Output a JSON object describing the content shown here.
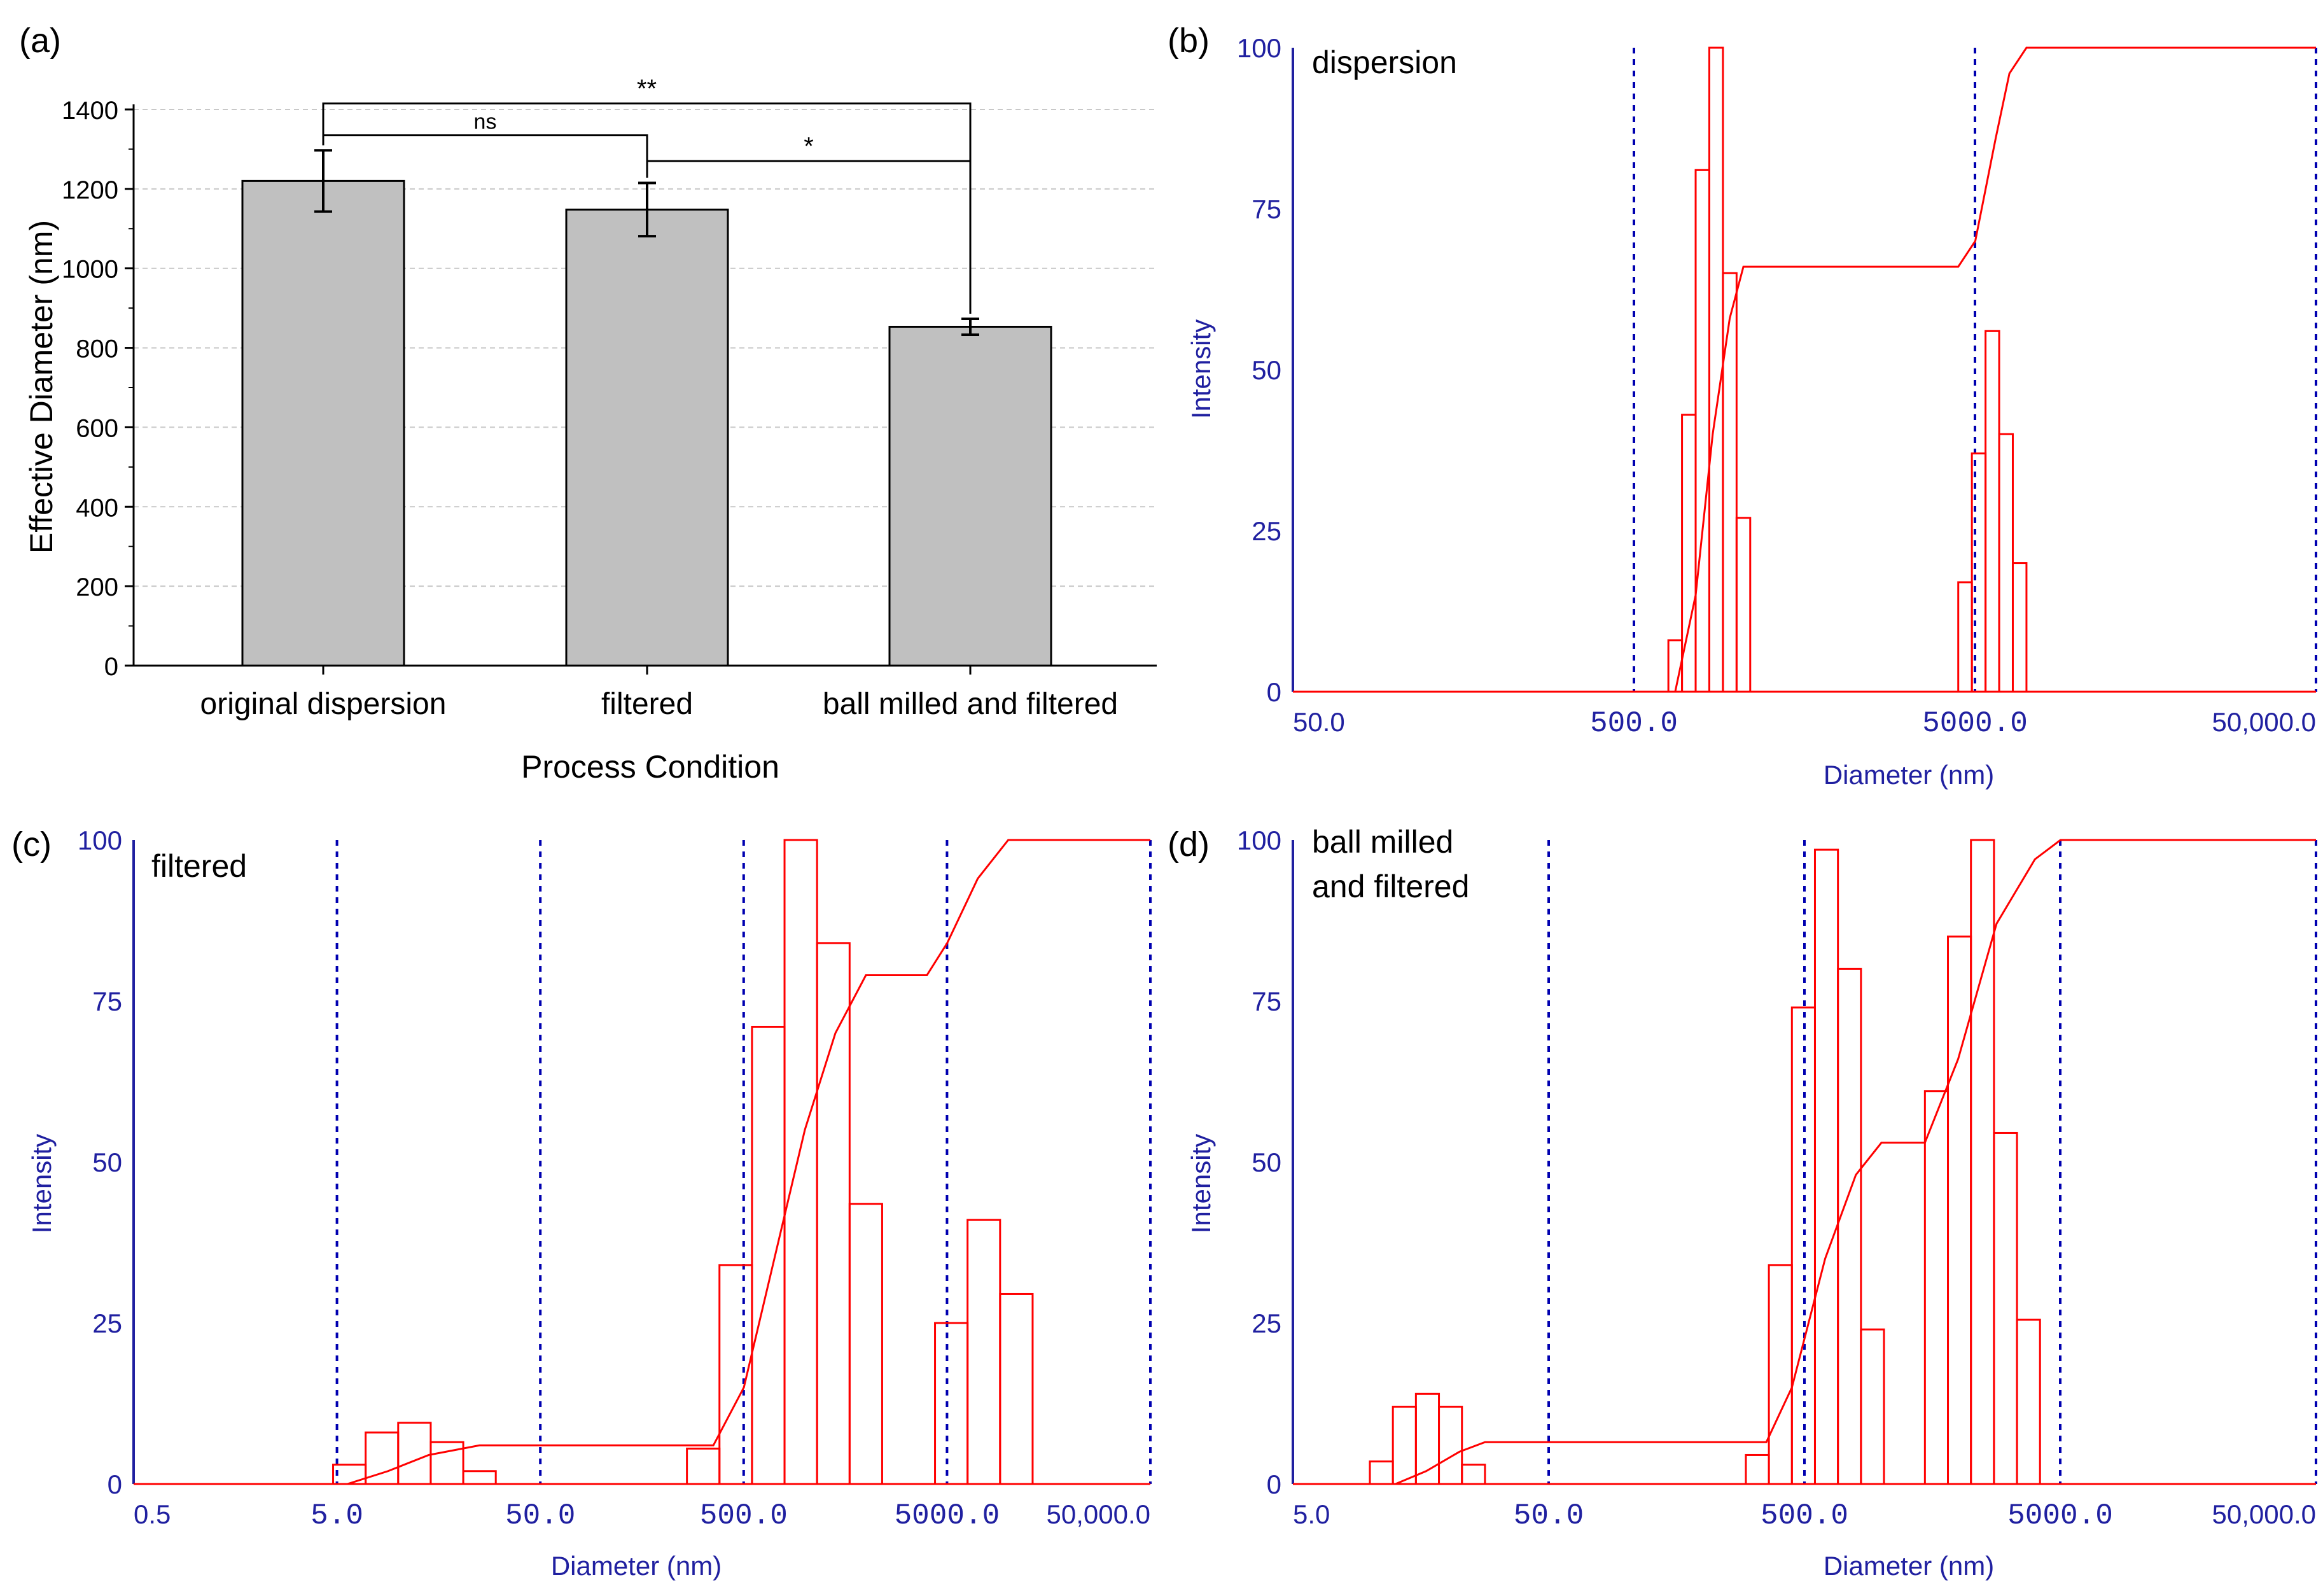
{
  "colors": {
    "bar_fill": "#c0c0c0",
    "bar_stroke": "#000000",
    "grid": "#c8c8c8",
    "dist": "#ff0000",
    "axis_blue": "#2020a0",
    "dotted": "#0000b0"
  },
  "panel_a": {
    "label": "(a)",
    "chart_data": {
      "type": "bar",
      "categories": [
        "original dispersion",
        "filtered",
        "ball milled and filtered"
      ],
      "values": [
        1220,
        1148,
        853
      ],
      "errors": [
        77,
        67,
        20
      ],
      "ylim": [
        0,
        1400
      ],
      "yticks": [
        "0",
        "200",
        "400",
        "600",
        "800",
        "1000",
        "1200",
        "1400"
      ],
      "xlabel": "Process Condition",
      "ylabel": "Effective Diameter (nm)",
      "grid": true,
      "significance": [
        {
          "from": 0,
          "to": 1,
          "level": 1335,
          "label": "ns"
        },
        {
          "from": 0,
          "to": 2,
          "level": 1415,
          "label": "**"
        },
        {
          "from": 1,
          "to": 2,
          "level": 1270,
          "label": "*"
        }
      ]
    }
  },
  "panel_b": {
    "label": "(b)",
    "title": "dispersion",
    "chart_data": {
      "type": "bar",
      "ylabel": "Intensity",
      "xlabel": "Diameter (nm)",
      "ylim": [
        0,
        100
      ],
      "yticks": [
        "0",
        "25",
        "50",
        "75",
        "100"
      ],
      "xlim_log10": [
        1.699,
        4.699
      ],
      "xticks": [
        {
          "log": 1.699,
          "label": "50.0",
          "mono": false
        },
        {
          "log": 2.699,
          "label": "500.0",
          "mono": true
        },
        {
          "log": 3.699,
          "label": "5000.0",
          "mono": true
        },
        {
          "log": 4.699,
          "label": "50,000.0",
          "mono": false
        }
      ],
      "decade_lines_log10": [
        2.699,
        3.699,
        4.699
      ],
      "histogram": [
        {
          "x0": 2.8,
          "x1": 2.84,
          "value": 8
        },
        {
          "x0": 2.84,
          "x1": 2.88,
          "value": 43
        },
        {
          "x0": 2.88,
          "x1": 2.92,
          "value": 81
        },
        {
          "x0": 2.92,
          "x1": 2.96,
          "value": 100
        },
        {
          "x0": 2.96,
          "x1": 3.0,
          "value": 65
        },
        {
          "x0": 3.0,
          "x1": 3.04,
          "value": 27
        },
        {
          "x0": 3.65,
          "x1": 3.69,
          "value": 17
        },
        {
          "x0": 3.69,
          "x1": 3.73,
          "value": 37
        },
        {
          "x0": 3.73,
          "x1": 3.77,
          "value": 56
        },
        {
          "x0": 3.77,
          "x1": 3.81,
          "value": 40
        },
        {
          "x0": 3.81,
          "x1": 3.85,
          "value": 20
        }
      ],
      "cumulative": [
        [
          1.699,
          0
        ],
        [
          2.82,
          0
        ],
        [
          2.88,
          15
        ],
        [
          2.93,
          40
        ],
        [
          2.98,
          58
        ],
        [
          3.02,
          66
        ],
        [
          3.65,
          66
        ],
        [
          3.7,
          70
        ],
        [
          3.76,
          86
        ],
        [
          3.8,
          96
        ],
        [
          3.85,
          100
        ],
        [
          4.699,
          100
        ]
      ]
    }
  },
  "panel_c": {
    "label": "(c)",
    "title": "filtered",
    "chart_data": {
      "type": "bar",
      "ylabel": "Intensity",
      "xlabel": "Diameter (nm)",
      "ylim": [
        0,
        100
      ],
      "yticks": [
        "0",
        "25",
        "50",
        "75",
        "100"
      ],
      "xlim_log10": [
        -0.301,
        4.699
      ],
      "xticks": [
        {
          "log": -0.301,
          "label": "0.5",
          "mono": false
        },
        {
          "log": 0.699,
          "label": "5.0",
          "mono": true
        },
        {
          "log": 1.699,
          "label": "50.0",
          "mono": true
        },
        {
          "log": 2.699,
          "label": "500.0",
          "mono": true
        },
        {
          "log": 3.699,
          "label": "5000.0",
          "mono": true
        },
        {
          "log": 4.699,
          "label": "50,000.0",
          "mono": false
        }
      ],
      "decade_lines_log10": [
        0.699,
        1.699,
        2.699,
        3.699,
        4.699
      ],
      "histogram": [
        {
          "x0": 0.68,
          "x1": 0.84,
          "value": 3
        },
        {
          "x0": 0.84,
          "x1": 1.0,
          "value": 8
        },
        {
          "x0": 1.0,
          "x1": 1.16,
          "value": 9.5
        },
        {
          "x0": 1.16,
          "x1": 1.32,
          "value": 6.5
        },
        {
          "x0": 1.32,
          "x1": 1.48,
          "value": 2
        },
        {
          "x0": 2.42,
          "x1": 2.58,
          "value": 5.5
        },
        {
          "x0": 2.58,
          "x1": 2.74,
          "value": 34
        },
        {
          "x0": 2.74,
          "x1": 2.9,
          "value": 71
        },
        {
          "x0": 2.9,
          "x1": 3.06,
          "value": 100
        },
        {
          "x0": 3.06,
          "x1": 3.22,
          "value": 84
        },
        {
          "x0": 3.22,
          "x1": 3.38,
          "value": 43.5
        },
        {
          "x0": 3.64,
          "x1": 3.8,
          "value": 25
        },
        {
          "x0": 3.8,
          "x1": 3.96,
          "value": 41
        },
        {
          "x0": 3.96,
          "x1": 4.12,
          "value": 29.5
        }
      ],
      "cumulative": [
        [
          -0.301,
          0
        ],
        [
          0.75,
          0
        ],
        [
          0.95,
          2
        ],
        [
          1.15,
          4.5
        ],
        [
          1.4,
          6
        ],
        [
          1.7,
          6
        ],
        [
          2.55,
          6
        ],
        [
          2.7,
          15
        ],
        [
          2.85,
          35
        ],
        [
          3.0,
          55
        ],
        [
          3.15,
          70
        ],
        [
          3.3,
          79
        ],
        [
          3.6,
          79
        ],
        [
          3.7,
          84
        ],
        [
          3.85,
          94
        ],
        [
          4.0,
          100
        ],
        [
          4.699,
          100
        ]
      ]
    }
  },
  "panel_d": {
    "label": "(d)",
    "title_lines": [
      "ball milled",
      "and filtered"
    ],
    "chart_data": {
      "type": "bar",
      "ylabel": "Intensity",
      "xlabel": "Diameter (nm)",
      "ylim": [
        0,
        100
      ],
      "yticks": [
        "0",
        "25",
        "50",
        "75",
        "100"
      ],
      "xlim_log10": [
        0.699,
        4.699
      ],
      "xticks": [
        {
          "log": 0.699,
          "label": "5.0",
          "mono": false
        },
        {
          "log": 1.699,
          "label": "50.0",
          "mono": true
        },
        {
          "log": 2.699,
          "label": "500.0",
          "mono": true
        },
        {
          "log": 3.699,
          "label": "5000.0",
          "mono": true
        },
        {
          "log": 4.699,
          "label": "50,000.0",
          "mono": false
        }
      ],
      "decade_lines_log10": [
        1.699,
        2.699,
        3.699,
        4.699
      ],
      "histogram": [
        {
          "x0": 1.0,
          "x1": 1.09,
          "value": 3.5
        },
        {
          "x0": 1.09,
          "x1": 1.18,
          "value": 12
        },
        {
          "x0": 1.18,
          "x1": 1.27,
          "value": 14
        },
        {
          "x0": 1.27,
          "x1": 1.36,
          "value": 12
        },
        {
          "x0": 1.36,
          "x1": 1.45,
          "value": 3
        },
        {
          "x0": 2.47,
          "x1": 2.56,
          "value": 4.5
        },
        {
          "x0": 2.56,
          "x1": 2.65,
          "value": 34
        },
        {
          "x0": 2.65,
          "x1": 2.74,
          "value": 74
        },
        {
          "x0": 2.74,
          "x1": 2.83,
          "value": 98.5
        },
        {
          "x0": 2.83,
          "x1": 2.92,
          "value": 80
        },
        {
          "x0": 2.92,
          "x1": 3.01,
          "value": 24
        },
        {
          "x0": 3.17,
          "x1": 3.26,
          "value": 61
        },
        {
          "x0": 3.26,
          "x1": 3.35,
          "value": 85
        },
        {
          "x0": 3.35,
          "x1": 3.44,
          "value": 100
        },
        {
          "x0": 3.44,
          "x1": 3.53,
          "value": 54.5
        },
        {
          "x0": 3.53,
          "x1": 3.62,
          "value": 25.5
        }
      ],
      "cumulative": [
        [
          0.699,
          0
        ],
        [
          1.1,
          0
        ],
        [
          1.22,
          2
        ],
        [
          1.35,
          5
        ],
        [
          1.45,
          6.5
        ],
        [
          1.7,
          6.5
        ],
        [
          2.55,
          6.5
        ],
        [
          2.65,
          15
        ],
        [
          2.78,
          35
        ],
        [
          2.9,
          48
        ],
        [
          3.0,
          53
        ],
        [
          3.17,
          53
        ],
        [
          3.3,
          66
        ],
        [
          3.45,
          87
        ],
        [
          3.6,
          97
        ],
        [
          3.7,
          100
        ],
        [
          4.699,
          100
        ]
      ]
    }
  }
}
